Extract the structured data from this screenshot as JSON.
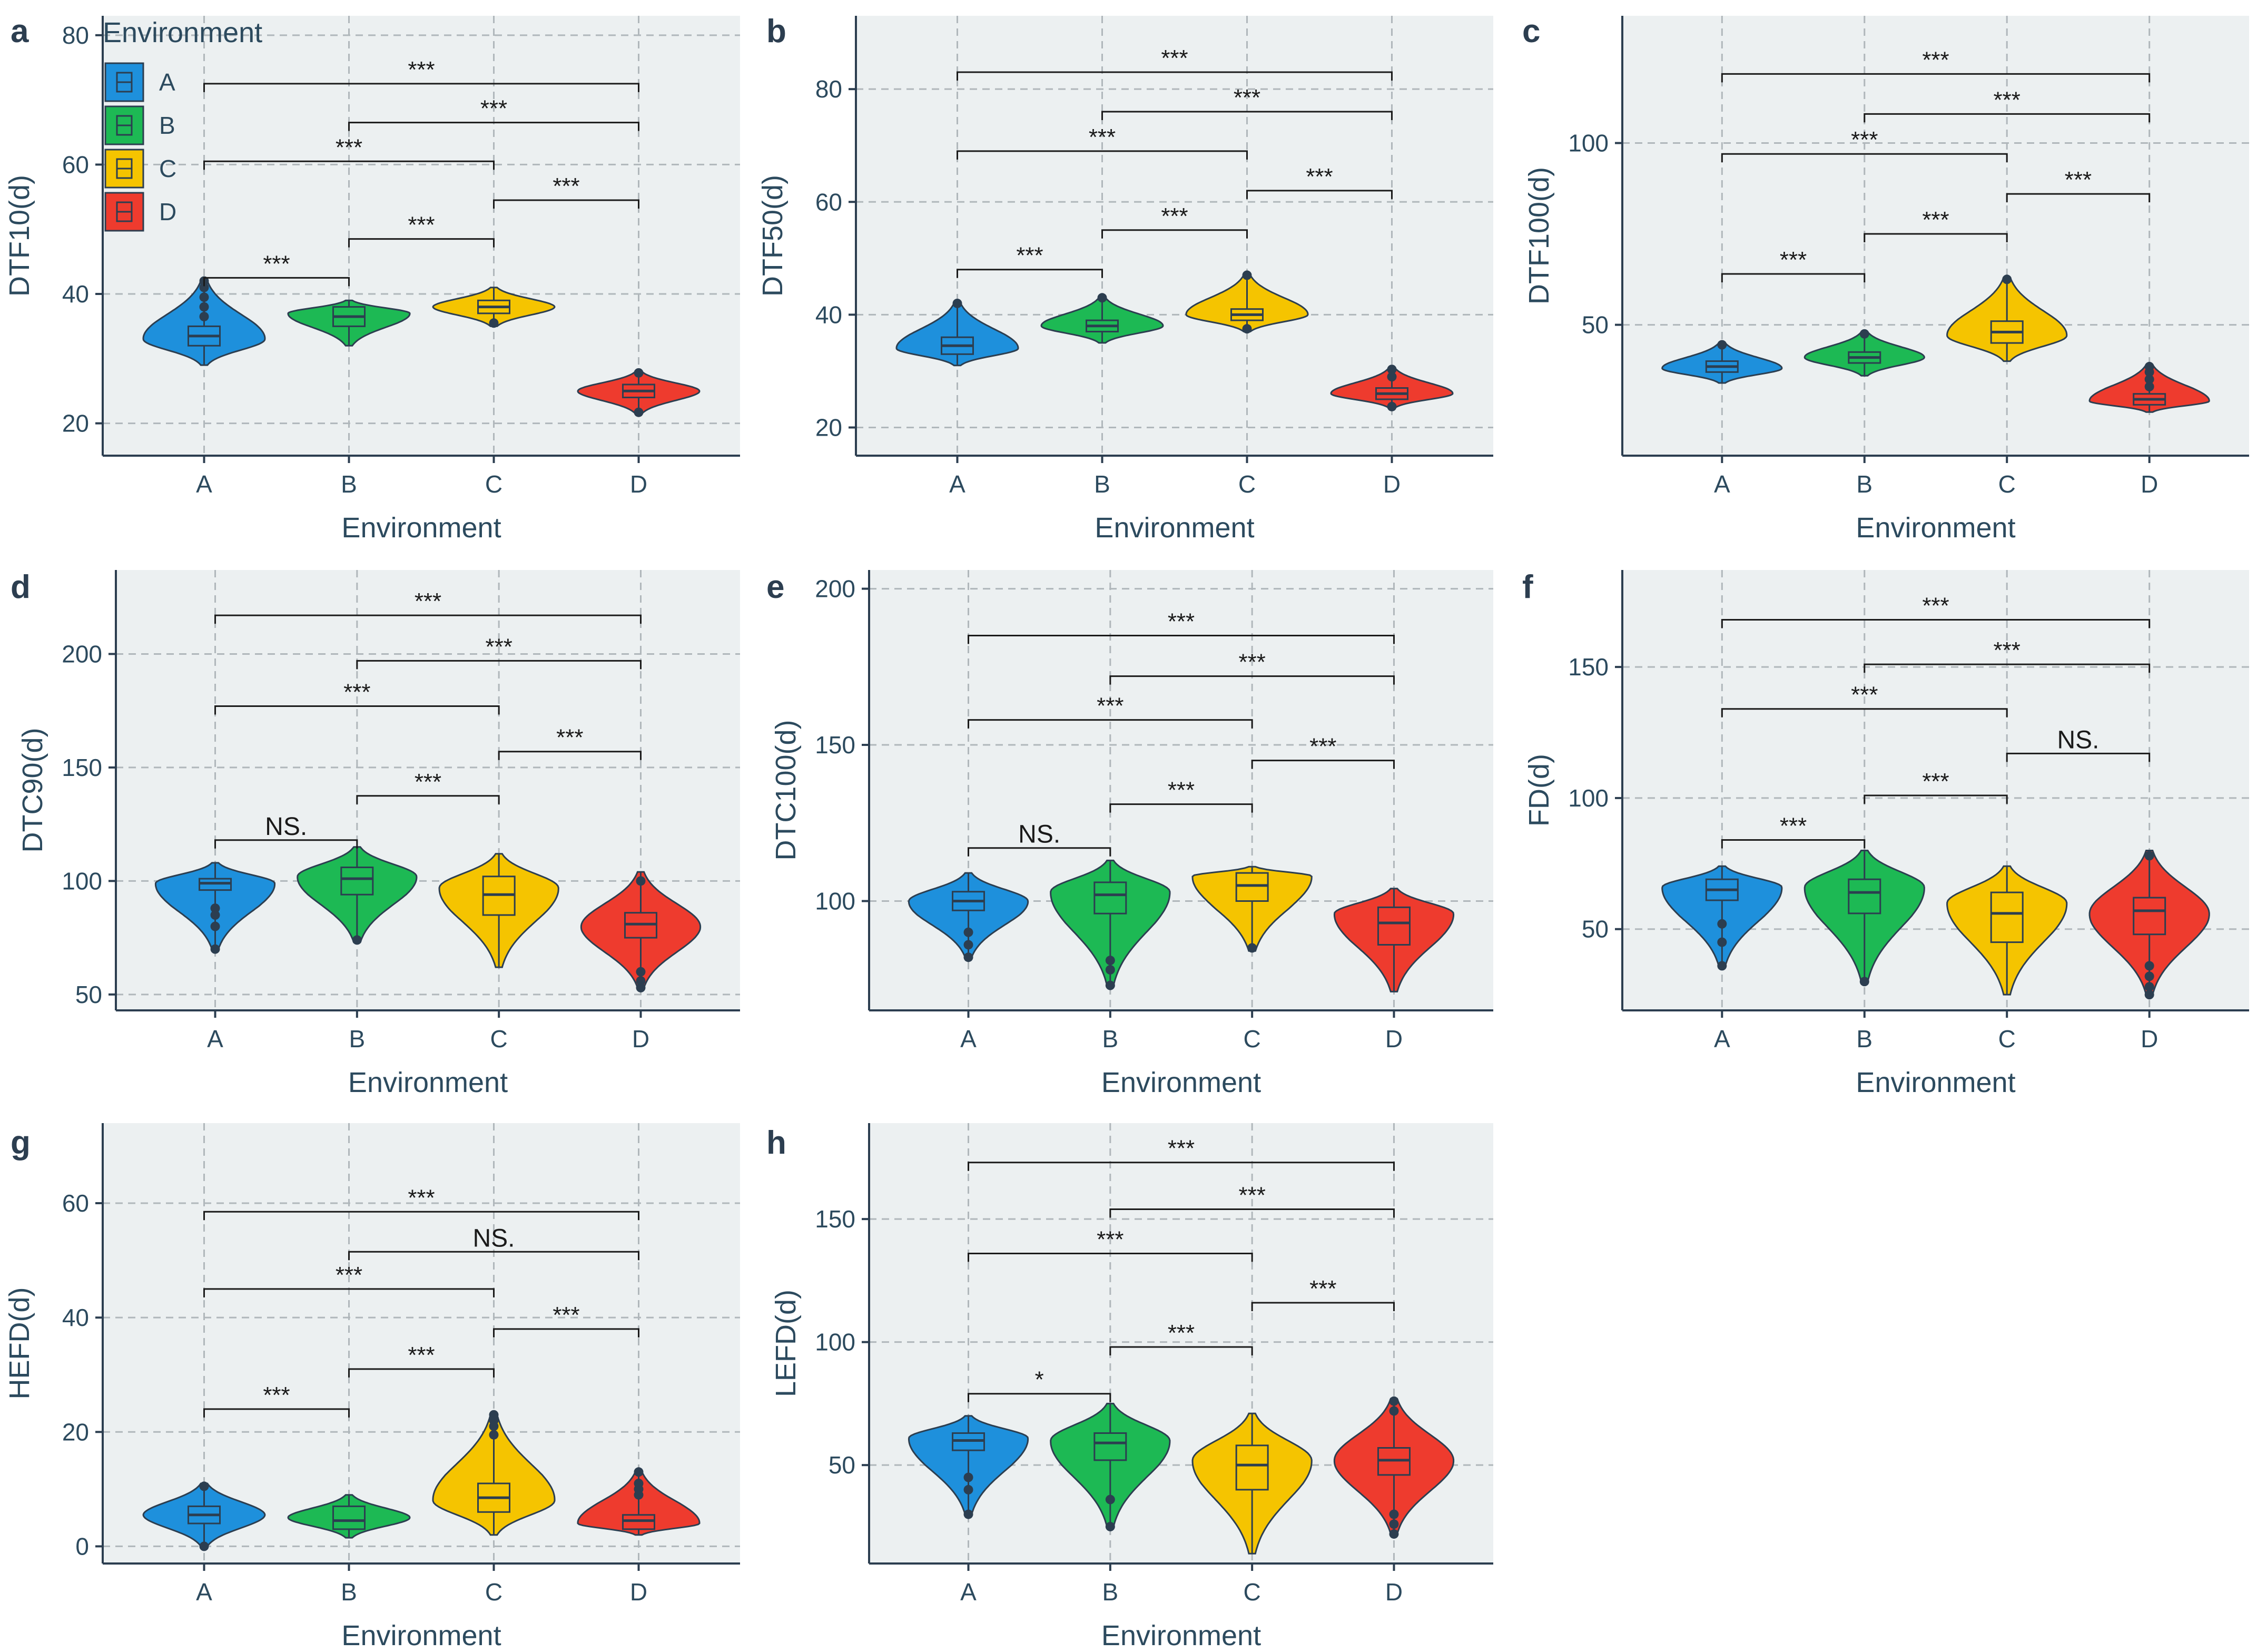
{
  "figure": {
    "legend": {
      "title": "Environment",
      "items": [
        {
          "label": "A",
          "color": "#1E90DC"
        },
        {
          "label": "B",
          "color": "#1DB954"
        },
        {
          "label": "C",
          "color": "#F5C400"
        },
        {
          "label": "D",
          "color": "#EE3B2E"
        }
      ]
    },
    "colors": {
      "panel_bg": "#ECF0F1",
      "axis": "#2C3E50",
      "grid": "#B0B7BB",
      "text": "#2C4A5E"
    }
  },
  "chart_data": [
    {
      "panel": "a",
      "type": "violin",
      "xlabel": "Environment",
      "ylabel": "DTF10(d)",
      "categories": [
        "A",
        "B",
        "C",
        "D"
      ],
      "ylim": [
        15,
        83
      ],
      "yticks": [
        20,
        40,
        60,
        80
      ],
      "violins": [
        {
          "min": 29,
          "max": 42,
          "q1": 32,
          "median": 33.5,
          "q3": 35,
          "mode": 33,
          "outliers": [
            36.5,
            38,
            39.5,
            41,
            42
          ]
        },
        {
          "min": 32,
          "max": 39,
          "q1": 35,
          "median": 36.5,
          "q3": 38,
          "mode": 37,
          "outliers": []
        },
        {
          "min": 35,
          "max": 41,
          "q1": 37,
          "median": 38,
          "q3": 39,
          "mode": 38,
          "outliers": [
            35.5
          ]
        },
        {
          "min": 21.5,
          "max": 28,
          "q1": 24,
          "median": 25,
          "q3": 26,
          "mode": 25,
          "outliers": [
            21.7,
            27.8
          ]
        }
      ],
      "comparisons": [
        {
          "from": "A",
          "to": "B",
          "label": "***",
          "y": 42.5
        },
        {
          "from": "B",
          "to": "C",
          "label": "***",
          "y": 48.5
        },
        {
          "from": "C",
          "to": "D",
          "label": "***",
          "y": 54.5
        },
        {
          "from": "A",
          "to": "C",
          "label": "***",
          "y": 60.5
        },
        {
          "from": "B",
          "to": "D",
          "label": "***",
          "y": 66.5
        },
        {
          "from": "A",
          "to": "D",
          "label": "***",
          "y": 72.5
        }
      ]
    },
    {
      "panel": "b",
      "type": "violin",
      "xlabel": "Environment",
      "ylabel": "DTF50(d)",
      "categories": [
        "A",
        "B",
        "C",
        "D"
      ],
      "ylim": [
        15,
        93
      ],
      "yticks": [
        20,
        40,
        60,
        80
      ],
      "violins": [
        {
          "min": 31,
          "max": 42,
          "q1": 33,
          "median": 34.5,
          "q3": 36,
          "mode": 34,
          "outliers": [
            42
          ]
        },
        {
          "min": 35,
          "max": 43,
          "q1": 37,
          "median": 38,
          "q3": 39,
          "mode": 38,
          "outliers": [
            43
          ]
        },
        {
          "min": 37,
          "max": 47,
          "q1": 39,
          "median": 40,
          "q3": 41,
          "mode": 40,
          "outliers": [
            37.5,
            47
          ]
        },
        {
          "min": 23.5,
          "max": 30.5,
          "q1": 25,
          "median": 26,
          "q3": 27,
          "mode": 26,
          "outliers": [
            23.7,
            29,
            30.3
          ]
        }
      ],
      "comparisons": [
        {
          "from": "A",
          "to": "B",
          "label": "***",
          "y": 48
        },
        {
          "from": "B",
          "to": "C",
          "label": "***",
          "y": 55
        },
        {
          "from": "C",
          "to": "D",
          "label": "***",
          "y": 62
        },
        {
          "from": "A",
          "to": "C",
          "label": "***",
          "y": 69
        },
        {
          "from": "B",
          "to": "D",
          "label": "***",
          "y": 76
        },
        {
          "from": "A",
          "to": "D",
          "label": "***",
          "y": 83
        }
      ]
    },
    {
      "panel": "c",
      "type": "violin",
      "xlabel": "Environment",
      "ylabel": "DTF100(d)",
      "categories": [
        "A",
        "B",
        "C",
        "D"
      ],
      "ylim": [
        14,
        135
      ],
      "yticks": [
        50,
        100
      ],
      "violins": [
        {
          "min": 34,
          "max": 45,
          "q1": 37,
          "median": 38.5,
          "q3": 40,
          "mode": 38,
          "outliers": [
            44.5
          ]
        },
        {
          "min": 36,
          "max": 48,
          "q1": 39.5,
          "median": 41,
          "q3": 42.5,
          "mode": 41,
          "outliers": [
            47.5
          ]
        },
        {
          "min": 40,
          "max": 63,
          "q1": 45,
          "median": 48,
          "q3": 51,
          "mode": 47,
          "outliers": [
            62.5
          ]
        },
        {
          "min": 26,
          "max": 39,
          "q1": 28,
          "median": 29.5,
          "q3": 31,
          "mode": 29,
          "outliers": [
            33,
            35,
            37,
            38.5
          ]
        }
      ],
      "comparisons": [
        {
          "from": "A",
          "to": "B",
          "label": "***",
          "y": 64
        },
        {
          "from": "B",
          "to": "C",
          "label": "***",
          "y": 75
        },
        {
          "from": "C",
          "to": "D",
          "label": "***",
          "y": 86
        },
        {
          "from": "A",
          "to": "C",
          "label": "***",
          "y": 97
        },
        {
          "from": "B",
          "to": "D",
          "label": "***",
          "y": 108
        },
        {
          "from": "A",
          "to": "D",
          "label": "***",
          "y": 119
        }
      ]
    },
    {
      "panel": "d",
      "type": "violin",
      "xlabel": "Environment",
      "ylabel": "DTC90(d)",
      "categories": [
        "A",
        "B",
        "C",
        "D"
      ],
      "ylim": [
        43,
        237
      ],
      "yticks": [
        50,
        100,
        150,
        200
      ],
      "violins": [
        {
          "min": 70,
          "max": 108,
          "q1": 96,
          "median": 99,
          "q3": 101,
          "mode": 99,
          "outliers": [
            70,
            80,
            85,
            88
          ]
        },
        {
          "min": 73,
          "max": 115,
          "q1": 94,
          "median": 101,
          "q3": 106,
          "mode": 102,
          "outliers": [
            74
          ]
        },
        {
          "min": 62,
          "max": 112,
          "q1": 85,
          "median": 94,
          "q3": 102,
          "mode": 97,
          "outliers": []
        },
        {
          "min": 53,
          "max": 104,
          "q1": 75,
          "median": 81,
          "q3": 86,
          "mode": 80,
          "outliers": [
            53,
            56,
            60,
            100
          ]
        }
      ],
      "comparisons": [
        {
          "from": "A",
          "to": "B",
          "label": "NS.",
          "y": 118
        },
        {
          "from": "B",
          "to": "C",
          "label": "***",
          "y": 137.5
        },
        {
          "from": "C",
          "to": "D",
          "label": "***",
          "y": 157
        },
        {
          "from": "A",
          "to": "C",
          "label": "***",
          "y": 177
        },
        {
          "from": "B",
          "to": "D",
          "label": "***",
          "y": 197
        },
        {
          "from": "A",
          "to": "D",
          "label": "***",
          "y": 217
        }
      ]
    },
    {
      "panel": "e",
      "type": "violin",
      "xlabel": "Environment",
      "ylabel": "DTC100(d)",
      "categories": [
        "A",
        "B",
        "C",
        "D"
      ],
      "ylim": [
        65,
        206
      ],
      "yticks": [
        100,
        150,
        200
      ],
      "violins": [
        {
          "min": 82,
          "max": 109,
          "q1": 97,
          "median": 100,
          "q3": 103,
          "mode": 100,
          "outliers": [
            82,
            86,
            90
          ]
        },
        {
          "min": 73,
          "max": 113,
          "q1": 96,
          "median": 102,
          "q3": 106,
          "mode": 103,
          "outliers": [
            73,
            78,
            81
          ]
        },
        {
          "min": 84,
          "max": 111,
          "q1": 100,
          "median": 105,
          "q3": 109,
          "mode": 108,
          "outliers": [
            85
          ]
        },
        {
          "min": 71,
          "max": 104,
          "q1": 86,
          "median": 93,
          "q3": 98,
          "mode": 96,
          "outliers": []
        }
      ],
      "comparisons": [
        {
          "from": "A",
          "to": "B",
          "label": "NS.",
          "y": 117
        },
        {
          "from": "B",
          "to": "C",
          "label": "***",
          "y": 131
        },
        {
          "from": "C",
          "to": "D",
          "label": "***",
          "y": 145
        },
        {
          "from": "A",
          "to": "C",
          "label": "***",
          "y": 158
        },
        {
          "from": "B",
          "to": "D",
          "label": "***",
          "y": 172
        },
        {
          "from": "A",
          "to": "D",
          "label": "***",
          "y": 185
        }
      ]
    },
    {
      "panel": "f",
      "type": "violin",
      "xlabel": "Environment",
      "ylabel": "FD(d)",
      "categories": [
        "A",
        "B",
        "C",
        "D"
      ],
      "ylim": [
        19,
        187
      ],
      "yticks": [
        50,
        100,
        150
      ],
      "violins": [
        {
          "min": 36,
          "max": 74,
          "q1": 61,
          "median": 65,
          "q3": 69,
          "mode": 66,
          "outliers": [
            36,
            45,
            52
          ]
        },
        {
          "min": 30,
          "max": 80,
          "q1": 56,
          "median": 64,
          "q3": 69,
          "mode": 66,
          "outliers": [
            30
          ]
        },
        {
          "min": 25,
          "max": 74,
          "q1": 45,
          "median": 56,
          "q3": 64,
          "mode": 60,
          "outliers": []
        },
        {
          "min": 25,
          "max": 80,
          "q1": 48,
          "median": 57,
          "q3": 62,
          "mode": 56,
          "outliers": [
            25,
            28,
            32,
            36,
            78
          ]
        }
      ],
      "comparisons": [
        {
          "from": "A",
          "to": "B",
          "label": "***",
          "y": 84
        },
        {
          "from": "B",
          "to": "C",
          "label": "***",
          "y": 101
        },
        {
          "from": "C",
          "to": "D",
          "label": "NS.",
          "y": 117
        },
        {
          "from": "A",
          "to": "C",
          "label": "***",
          "y": 134
        },
        {
          "from": "B",
          "to": "D",
          "label": "***",
          "y": 151
        },
        {
          "from": "A",
          "to": "D",
          "label": "***",
          "y": 168
        }
      ]
    },
    {
      "panel": "g",
      "type": "violin",
      "xlabel": "Environment",
      "ylabel": "HEFD(d)",
      "categories": [
        "A",
        "B",
        "C",
        "D"
      ],
      "ylim": [
        -3,
        74
      ],
      "yticks": [
        0,
        20,
        40,
        60
      ],
      "violins": [
        {
          "min": 0,
          "max": 11,
          "q1": 4,
          "median": 5.5,
          "q3": 7,
          "mode": 5.5,
          "outliers": [
            0,
            10.5
          ]
        },
        {
          "min": 1.5,
          "max": 9,
          "q1": 3,
          "median": 4.5,
          "q3": 7,
          "mode": 5,
          "outliers": []
        },
        {
          "min": 2,
          "max": 23,
          "q1": 6,
          "median": 8.5,
          "q3": 11,
          "mode": 8,
          "outliers": [
            19.5,
            21,
            22,
            23
          ]
        },
        {
          "min": 2,
          "max": 13,
          "q1": 3,
          "median": 4.5,
          "q3": 5.5,
          "mode": 4,
          "outliers": [
            9,
            10,
            11,
            13
          ]
        }
      ],
      "comparisons": [
        {
          "from": "A",
          "to": "B",
          "label": "***",
          "y": 24
        },
        {
          "from": "B",
          "to": "C",
          "label": "***",
          "y": 31
        },
        {
          "from": "C",
          "to": "D",
          "label": "***",
          "y": 38
        },
        {
          "from": "A",
          "to": "C",
          "label": "***",
          "y": 45
        },
        {
          "from": "B",
          "to": "D",
          "label": "NS.",
          "y": 51.5
        },
        {
          "from": "A",
          "to": "D",
          "label": "***",
          "y": 58.5
        }
      ]
    },
    {
      "panel": "h",
      "type": "violin",
      "xlabel": "Environment",
      "ylabel": "LEFD(d)",
      "categories": [
        "A",
        "B",
        "C",
        "D"
      ],
      "ylim": [
        10,
        189
      ],
      "yticks": [
        50,
        100,
        150
      ],
      "violins": [
        {
          "min": 30,
          "max": 70,
          "q1": 56,
          "median": 60,
          "q3": 63,
          "mode": 61,
          "outliers": [
            30,
            40,
            45
          ]
        },
        {
          "min": 25,
          "max": 75,
          "q1": 52,
          "median": 59,
          "q3": 63,
          "mode": 60,
          "outliers": [
            25,
            36
          ]
        },
        {
          "min": 14,
          "max": 71,
          "q1": 40,
          "median": 50,
          "q3": 58,
          "mode": 52,
          "outliers": []
        },
        {
          "min": 22,
          "max": 77,
          "q1": 46,
          "median": 52,
          "q3": 57,
          "mode": 52,
          "outliers": [
            22,
            26,
            30,
            72,
            76
          ]
        }
      ],
      "comparisons": [
        {
          "from": "A",
          "to": "B",
          "label": "*",
          "y": 79
        },
        {
          "from": "B",
          "to": "C",
          "label": "***",
          "y": 98
        },
        {
          "from": "C",
          "to": "D",
          "label": "***",
          "y": 116
        },
        {
          "from": "A",
          "to": "C",
          "label": "***",
          "y": 136
        },
        {
          "from": "B",
          "to": "D",
          "label": "***",
          "y": 154
        },
        {
          "from": "A",
          "to": "D",
          "label": "***",
          "y": 173
        }
      ]
    }
  ]
}
